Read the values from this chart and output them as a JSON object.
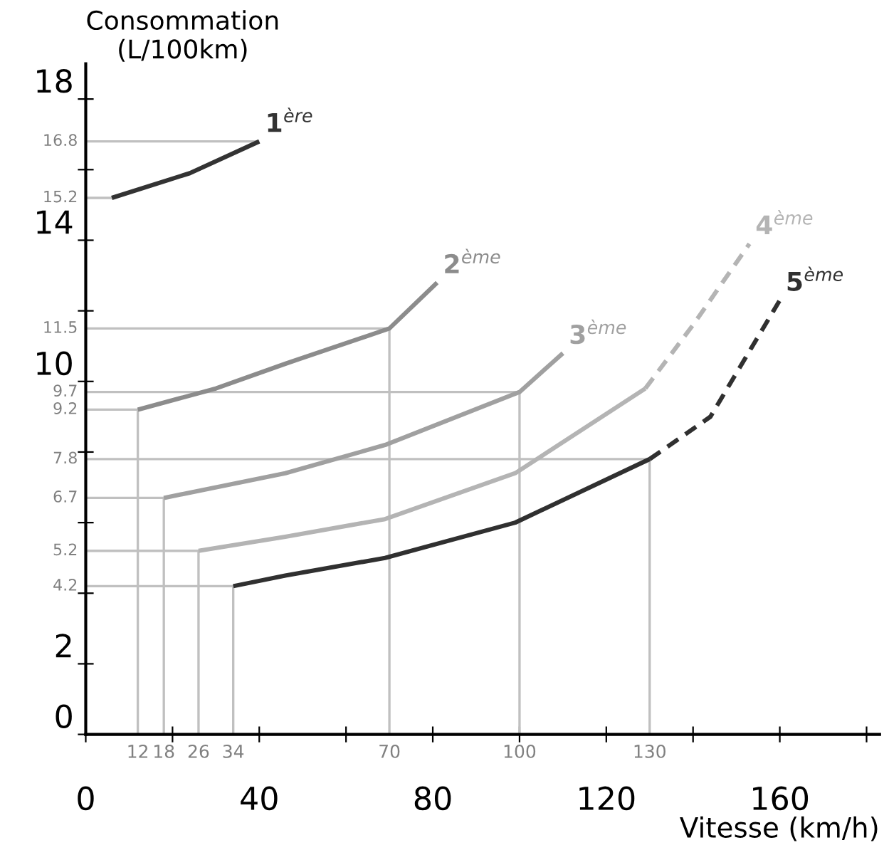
{
  "chart_data": {
    "type": "line",
    "xlabel": "Vitesse (km/h)",
    "ylabel": "Consommation\n(L/100km)",
    "xlim": [
      0,
      183
    ],
    "ylim": [
      0,
      19
    ],
    "xticks": [
      0,
      {
        "value": 20,
        "label": null
      },
      40,
      {
        "value": 60,
        "label": null
      },
      80,
      {
        "value": 100,
        "label": null
      },
      120,
      {
        "value": 140,
        "label": null
      },
      160,
      {
        "value": 180,
        "label": null
      }
    ],
    "yticks": [
      0,
      2,
      {
        "value": 4,
        "label": null
      },
      {
        "value": 6,
        "label": null
      },
      {
        "value": 8,
        "label": null
      },
      10,
      {
        "value": 12,
        "label": null
      },
      14,
      {
        "value": 16,
        "label": null
      },
      18
    ],
    "grid": false,
    "legend": false,
    "marker": "none",
    "series": [
      {
        "color": "#c0c0c0",
        "x": [
          0,
          40
        ],
        "values": [
          16.8,
          16.8
        ]
      },
      {
        "color": "#c0c0c0",
        "x": [
          0,
          6
        ],
        "values": [
          15.2,
          15.2
        ]
      },
      {
        "color": "#c0c0c0",
        "x": [
          0,
          70,
          70
        ],
        "values": [
          11.5,
          11.5,
          0
        ]
      },
      {
        "color": "#c0c0c0",
        "x": [
          0,
          100,
          100
        ],
        "values": [
          9.7,
          9.7,
          0
        ]
      },
      {
        "color": "#c0c0c0",
        "x": [
          0,
          12,
          12
        ],
        "values": [
          9.2,
          9.2,
          0
        ]
      },
      {
        "color": "#c0c0c0",
        "x": [
          0,
          130,
          130
        ],
        "values": [
          7.8,
          7.8,
          0
        ]
      },
      {
        "color": "#c0c0c0",
        "x": [
          0,
          18,
          18
        ],
        "values": [
          6.7,
          6.7,
          0
        ]
      },
      {
        "color": "#c0c0c0",
        "x": [
          0,
          26,
          26
        ],
        "values": [
          5.2,
          5.2,
          0
        ]
      },
      {
        "color": "#c0c0c0",
        "x": [
          0,
          34,
          34
        ],
        "values": [
          4.2,
          4.2,
          0
        ]
      },
      {
        "name": "1$^{ère}$",
        "color": "#333333",
        "line_style": "solid",
        "x": [
          6,
          24,
          40
        ],
        "values": [
          15.2,
          15.9,
          16.8
        ]
      },
      {
        "name": "2$^{ème}$",
        "color": "#8c8c8c",
        "line_style": "solid",
        "x": [
          12,
          30,
          46,
          70,
          81
        ],
        "values": [
          9.2,
          9.8,
          10.5,
          11.5,
          12.8
        ]
      },
      {
        "name": "3$^{ème}$",
        "color": "#a0a0a0",
        "line_style": "solid",
        "x": [
          18,
          46,
          69,
          100,
          110
        ],
        "values": [
          6.7,
          7.4,
          8.2,
          9.7,
          10.8
        ]
      },
      {
        "color": "#b4b4b4",
        "line_style": "solid",
        "x": [
          26,
          46,
          69,
          99,
          129
        ],
        "values": [
          5.2,
          5.6,
          6.1,
          7.4,
          9.8
        ]
      },
      {
        "name": "4$^{ème}$",
        "color": "#b4b4b4",
        "line_style": "dashed",
        "x": [
          129,
          140,
          153
        ],
        "values": [
          9.8,
          11.6,
          13.9
        ]
      },
      {
        "color": "#303030",
        "line_style": "solid",
        "x": [
          34,
          46,
          69,
          99,
          130
        ],
        "values": [
          4.2,
          4.5,
          5.0,
          6.0,
          7.8
        ]
      },
      {
        "name": "5$^{ème}$",
        "color": "#303030",
        "line_style": "dashed",
        "x": [
          130,
          144,
          160
        ],
        "values": [
          7.8,
          9.0,
          12.3
        ]
      }
    ],
    "annotations": [
      {
        "text": "12",
        "x": 12,
        "y": 0
      },
      {
        "text": "18",
        "x": 18,
        "y": 0
      },
      {
        "text": "26",
        "x": 26,
        "y": 0
      },
      {
        "text": "34",
        "x": 34,
        "y": 0
      },
      {
        "text": "70",
        "x": 70,
        "y": 0
      },
      {
        "text": "100",
        "x": 100,
        "y": 0
      },
      {
        "text": "130",
        "x": 130,
        "y": 0
      },
      {
        "text": "16.8",
        "x": 0,
        "y": 16.8
      },
      {
        "text": "15.2",
        "x": 0,
        "y": 15.2
      },
      {
        "text": "11.5",
        "x": 0,
        "y": 11.5
      },
      {
        "text": "9.7",
        "x": 0,
        "y": 9.7
      },
      {
        "text": "9.2",
        "x": 0,
        "y": 9.2
      },
      {
        "text": "7.8",
        "x": 0,
        "y": 7.8
      },
      {
        "text": "6.7",
        "x": 0,
        "y": 6.7
      },
      {
        "text": "5.2",
        "x": 0,
        "y": 5.2
      },
      {
        "text": "4.2",
        "x": 0,
        "y": 4.2
      }
    ]
  }
}
